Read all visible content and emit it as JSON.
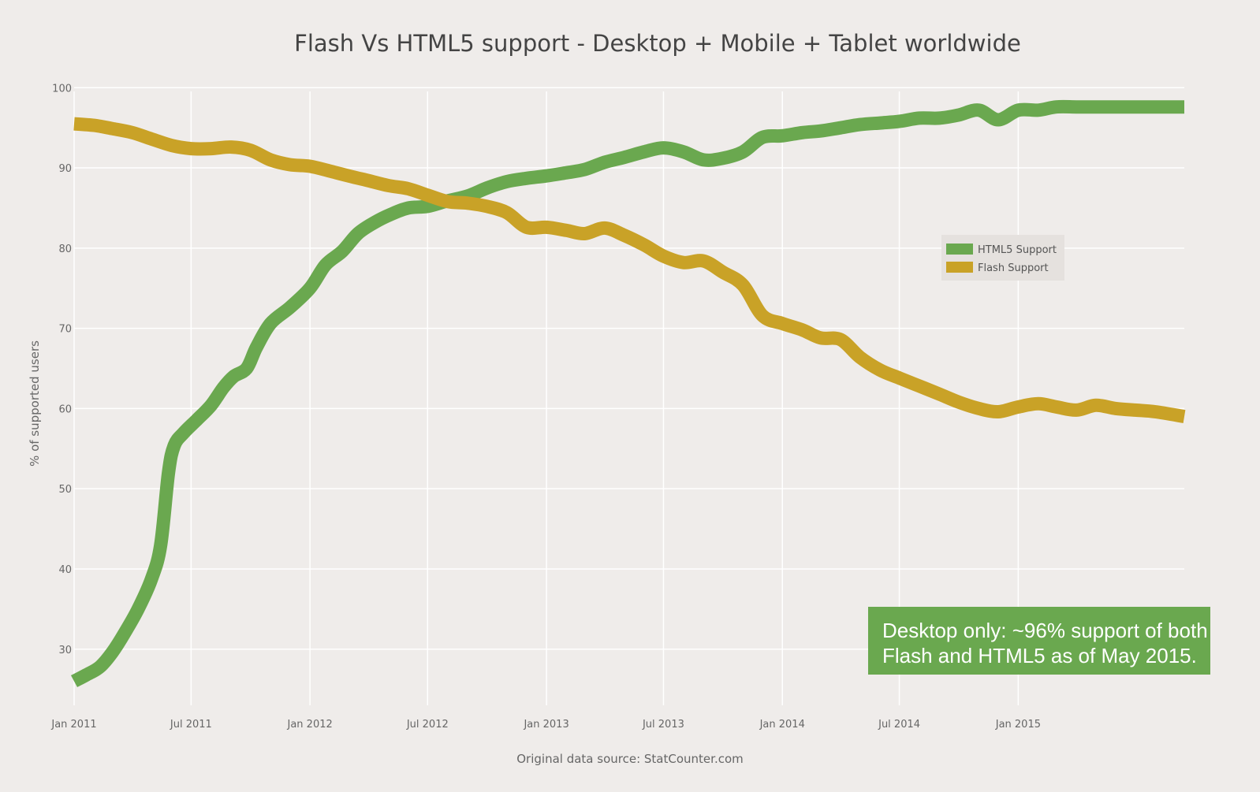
{
  "chart_data": {
    "type": "line",
    "title": "Flash Vs HTML5 support - Desktop + Mobile + Tablet worldwide",
    "xlabel": "Original data source: StatCounter.com",
    "ylabel": "% of supported users",
    "ylim": [
      23,
      101.5
    ],
    "xlim": [
      "2011-01-01",
      "2015-09-15"
    ],
    "grid": true,
    "x_ticks": [
      "Jan 2011",
      "Jul 2011",
      "Jan 2012",
      "Jul 2012",
      "Jan 2013",
      "Jul 2013",
      "Jan 2014",
      "Jul 2014",
      "Jan 2015"
    ],
    "y_ticks": [
      30,
      40,
      50,
      60,
      70,
      80,
      90,
      100
    ],
    "legend_position": "right",
    "series": [
      {
        "name": "HTML5 Support",
        "color": "#6aa84f",
        "points": [
          [
            "2011-01-01",
            26.0
          ],
          [
            "2011-01-20",
            26.8
          ],
          [
            "2011-02-10",
            27.8
          ],
          [
            "2011-03-01",
            29.6
          ],
          [
            "2011-03-20",
            32.0
          ],
          [
            "2011-04-10",
            35.0
          ],
          [
            "2011-05-01",
            38.8
          ],
          [
            "2011-05-15",
            43.0
          ],
          [
            "2011-05-27",
            52.0
          ],
          [
            "2011-06-05",
            55.4
          ],
          [
            "2011-06-20",
            57.0
          ],
          [
            "2011-07-10",
            58.6
          ],
          [
            "2011-08-01",
            60.4
          ],
          [
            "2011-08-20",
            62.6
          ],
          [
            "2011-09-05",
            64.0
          ],
          [
            "2011-09-25",
            65.0
          ],
          [
            "2011-10-10",
            67.6
          ],
          [
            "2011-11-01",
            70.6
          ],
          [
            "2011-12-01",
            72.6
          ],
          [
            "2012-01-01",
            75.0
          ],
          [
            "2012-01-25",
            77.9
          ],
          [
            "2012-02-20",
            79.6
          ],
          [
            "2012-03-15",
            81.8
          ],
          [
            "2012-04-10",
            83.2
          ],
          [
            "2012-05-05",
            84.2
          ],
          [
            "2012-06-01",
            85.0
          ],
          [
            "2012-07-01",
            85.2
          ],
          [
            "2012-08-01",
            85.9
          ],
          [
            "2012-09-01",
            86.5
          ],
          [
            "2012-10-01",
            87.5
          ],
          [
            "2012-11-01",
            88.3
          ],
          [
            "2012-12-01",
            88.7
          ],
          [
            "2013-01-01",
            89.0
          ],
          [
            "2013-02-01",
            89.4
          ],
          [
            "2013-03-01",
            89.8
          ],
          [
            "2013-04-01",
            90.7
          ],
          [
            "2013-05-01",
            91.3
          ],
          [
            "2013-06-01",
            92.0
          ],
          [
            "2013-07-01",
            92.5
          ],
          [
            "2013-08-01",
            92.0
          ],
          [
            "2013-09-01",
            91.0
          ],
          [
            "2013-10-01",
            91.2
          ],
          [
            "2013-11-01",
            92.0
          ],
          [
            "2013-12-01",
            93.8
          ],
          [
            "2014-01-01",
            94.0
          ],
          [
            "2014-02-01",
            94.4
          ],
          [
            "2014-03-01",
            94.6
          ],
          [
            "2014-04-01",
            95.0
          ],
          [
            "2014-05-01",
            95.4
          ],
          [
            "2014-06-01",
            95.6
          ],
          [
            "2014-07-01",
            95.8
          ],
          [
            "2014-08-01",
            96.2
          ],
          [
            "2014-09-01",
            96.2
          ],
          [
            "2014-10-01",
            96.6
          ],
          [
            "2014-11-01",
            97.2
          ],
          [
            "2014-12-01",
            96.0
          ],
          [
            "2015-01-01",
            97.2
          ],
          [
            "2015-02-01",
            97.2
          ],
          [
            "2015-03-01",
            97.6
          ],
          [
            "2015-04-01",
            97.6
          ],
          [
            "2015-05-01",
            97.6
          ],
          [
            "2015-06-01",
            97.6
          ],
          [
            "2015-07-01",
            97.6
          ],
          [
            "2015-08-01",
            97.6
          ],
          [
            "2015-09-15",
            97.6
          ]
        ]
      },
      {
        "name": "Flash Support",
        "color": "#c9a227",
        "points": [
          [
            "2011-01-01",
            95.5
          ],
          [
            "2011-02-01",
            95.3
          ],
          [
            "2011-03-01",
            94.9
          ],
          [
            "2011-04-01",
            94.4
          ],
          [
            "2011-05-01",
            93.6
          ],
          [
            "2011-06-01",
            92.8
          ],
          [
            "2011-07-01",
            92.4
          ],
          [
            "2011-08-01",
            92.4
          ],
          [
            "2011-09-01",
            92.6
          ],
          [
            "2011-10-01",
            92.2
          ],
          [
            "2011-11-01",
            91.0
          ],
          [
            "2011-12-01",
            90.4
          ],
          [
            "2012-01-01",
            90.2
          ],
          [
            "2012-02-01",
            89.6
          ],
          [
            "2012-03-01",
            89.0
          ],
          [
            "2012-04-01",
            88.4
          ],
          [
            "2012-05-01",
            87.8
          ],
          [
            "2012-06-01",
            87.4
          ],
          [
            "2012-07-01",
            86.6
          ],
          [
            "2012-08-01",
            85.8
          ],
          [
            "2012-09-01",
            85.6
          ],
          [
            "2012-10-01",
            85.2
          ],
          [
            "2012-11-01",
            84.4
          ],
          [
            "2012-12-01",
            82.6
          ],
          [
            "2013-01-01",
            82.6
          ],
          [
            "2013-02-01",
            82.2
          ],
          [
            "2013-03-01",
            81.8
          ],
          [
            "2013-04-01",
            82.5
          ],
          [
            "2013-05-01",
            81.6
          ],
          [
            "2013-06-01",
            80.4
          ],
          [
            "2013-07-01",
            79.0
          ],
          [
            "2013-08-01",
            78.2
          ],
          [
            "2013-09-01",
            78.4
          ],
          [
            "2013-10-01",
            77.0
          ],
          [
            "2013-11-01",
            75.4
          ],
          [
            "2013-12-01",
            71.6
          ],
          [
            "2014-01-01",
            70.6
          ],
          [
            "2014-02-01",
            69.8
          ],
          [
            "2014-03-01",
            68.8
          ],
          [
            "2014-04-01",
            68.6
          ],
          [
            "2014-05-01",
            66.4
          ],
          [
            "2014-06-01",
            64.8
          ],
          [
            "2014-07-01",
            63.8
          ],
          [
            "2014-08-01",
            62.8
          ],
          [
            "2014-09-01",
            61.8
          ],
          [
            "2014-10-01",
            60.8
          ],
          [
            "2014-11-01",
            60.0
          ],
          [
            "2014-12-01",
            59.6
          ],
          [
            "2015-01-01",
            60.2
          ],
          [
            "2015-02-01",
            60.6
          ],
          [
            "2015-03-01",
            60.2
          ],
          [
            "2015-04-01",
            59.8
          ],
          [
            "2015-05-01",
            60.4
          ],
          [
            "2015-06-01",
            60.0
          ],
          [
            "2015-07-01",
            59.8
          ],
          [
            "2015-08-01",
            59.6
          ],
          [
            "2015-09-15",
            59.0
          ]
        ]
      }
    ]
  },
  "annotation": {
    "line1": "Desktop only: ~96% support of both",
    "line2": "Flash and HTML5 as of May 2015.",
    "color": "#6aa84f"
  }
}
